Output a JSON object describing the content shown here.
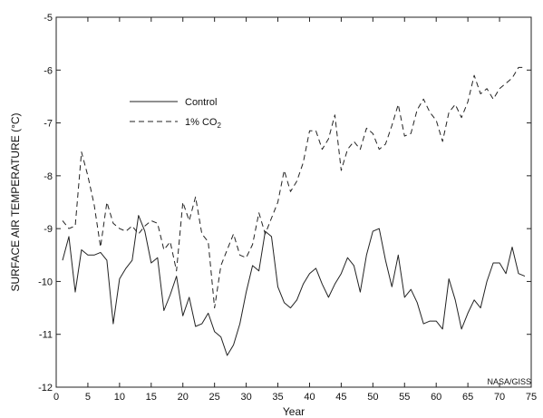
{
  "chart_data": {
    "type": "line",
    "xlabel": "Year",
    "ylabel": "SURFACE AIR TEMPERATURE (°C)",
    "xlim": [
      0,
      75
    ],
    "ylim": [
      -12,
      -5
    ],
    "xticks": [
      0,
      5,
      10,
      15,
      20,
      25,
      30,
      35,
      40,
      45,
      50,
      55,
      60,
      65,
      70,
      75
    ],
    "yticks": [
      -12,
      -11,
      -10,
      -9,
      -8,
      -7,
      -6,
      -5
    ],
    "grid": false,
    "legend_position": "upper-left",
    "credit": "NASA/GISS",
    "series": [
      {
        "name": "Control",
        "style": "solid",
        "x": [
          1,
          2,
          3,
          4,
          5,
          6,
          7,
          8,
          9,
          10,
          11,
          12,
          13,
          14,
          15,
          16,
          17,
          18,
          19,
          20,
          21,
          22,
          23,
          24,
          25,
          26,
          27,
          28,
          29,
          30,
          31,
          32,
          33,
          34,
          35,
          36,
          37,
          38,
          39,
          40,
          41,
          42,
          43,
          44,
          45,
          46,
          47,
          48,
          49,
          50,
          51,
          52,
          53,
          54,
          55,
          56,
          57,
          58,
          59,
          60,
          61,
          62,
          63,
          64,
          65,
          66,
          67,
          68,
          69,
          70,
          71,
          72,
          73,
          74
        ],
        "y": [
          -9.6,
          -9.15,
          -10.2,
          -9.4,
          -9.5,
          -9.5,
          -9.45,
          -9.6,
          -10.8,
          -9.95,
          -9.75,
          -9.6,
          -8.75,
          -9.05,
          -9.65,
          -9.55,
          -10.55,
          -10.25,
          -9.9,
          -10.65,
          -10.3,
          -10.85,
          -10.8,
          -10.6,
          -10.95,
          -11.05,
          -11.4,
          -11.2,
          -10.8,
          -10.2,
          -9.7,
          -9.8,
          -9.05,
          -9.15,
          -10.1,
          -10.4,
          -10.5,
          -10.35,
          -10.05,
          -9.85,
          -9.75,
          -10.05,
          -10.3,
          -10.05,
          -9.85,
          -9.55,
          -9.7,
          -10.2,
          -9.5,
          -9.05,
          -9.0,
          -9.6,
          -10.1,
          -9.5,
          -10.3,
          -10.15,
          -10.4,
          -10.8,
          -10.75,
          -10.75,
          -10.9,
          -9.95,
          -10.35,
          -10.9,
          -10.6,
          -10.35,
          -10.5,
          -10.0,
          -9.65,
          -9.65,
          -9.85,
          -9.35,
          -9.85,
          -9.9
        ]
      },
      {
        "name": "1% CO",
        "name_subscript": "2",
        "style": "dashed",
        "x": [
          1,
          2,
          3,
          4,
          5,
          6,
          7,
          8,
          9,
          10,
          11,
          12,
          13,
          14,
          15,
          16,
          17,
          18,
          19,
          20,
          21,
          22,
          23,
          24,
          25,
          26,
          27,
          28,
          29,
          30,
          31,
          32,
          33,
          34,
          35,
          36,
          37,
          38,
          39,
          40,
          41,
          42,
          43,
          44,
          45,
          46,
          47,
          48,
          49,
          50,
          51,
          52,
          53,
          54,
          55,
          56,
          57,
          58,
          59,
          60,
          61,
          62,
          63,
          64,
          65,
          66,
          67,
          68,
          69,
          70,
          71,
          72,
          73,
          74
        ],
        "y": [
          -8.85,
          -9.0,
          -8.95,
          -7.55,
          -8.0,
          -8.55,
          -9.35,
          -8.5,
          -8.9,
          -9.0,
          -9.05,
          -8.95,
          -9.1,
          -8.95,
          -8.85,
          -8.9,
          -9.4,
          -9.25,
          -9.8,
          -8.5,
          -8.85,
          -8.4,
          -9.1,
          -9.25,
          -10.5,
          -9.7,
          -9.4,
          -9.1,
          -9.5,
          -9.55,
          -9.3,
          -8.7,
          -9.1,
          -8.8,
          -8.5,
          -7.9,
          -8.3,
          -8.1,
          -7.75,
          -7.15,
          -7.15,
          -7.5,
          -7.3,
          -6.85,
          -7.9,
          -7.5,
          -7.35,
          -7.5,
          -7.1,
          -7.2,
          -7.5,
          -7.4,
          -7.05,
          -6.65,
          -7.25,
          -7.2,
          -6.75,
          -6.55,
          -6.8,
          -6.95,
          -7.35,
          -6.8,
          -6.65,
          -6.9,
          -6.6,
          -6.1,
          -6.45,
          -6.35,
          -6.55,
          -6.35,
          -6.25,
          -6.15,
          -5.95,
          -5.95
        ]
      }
    ]
  }
}
